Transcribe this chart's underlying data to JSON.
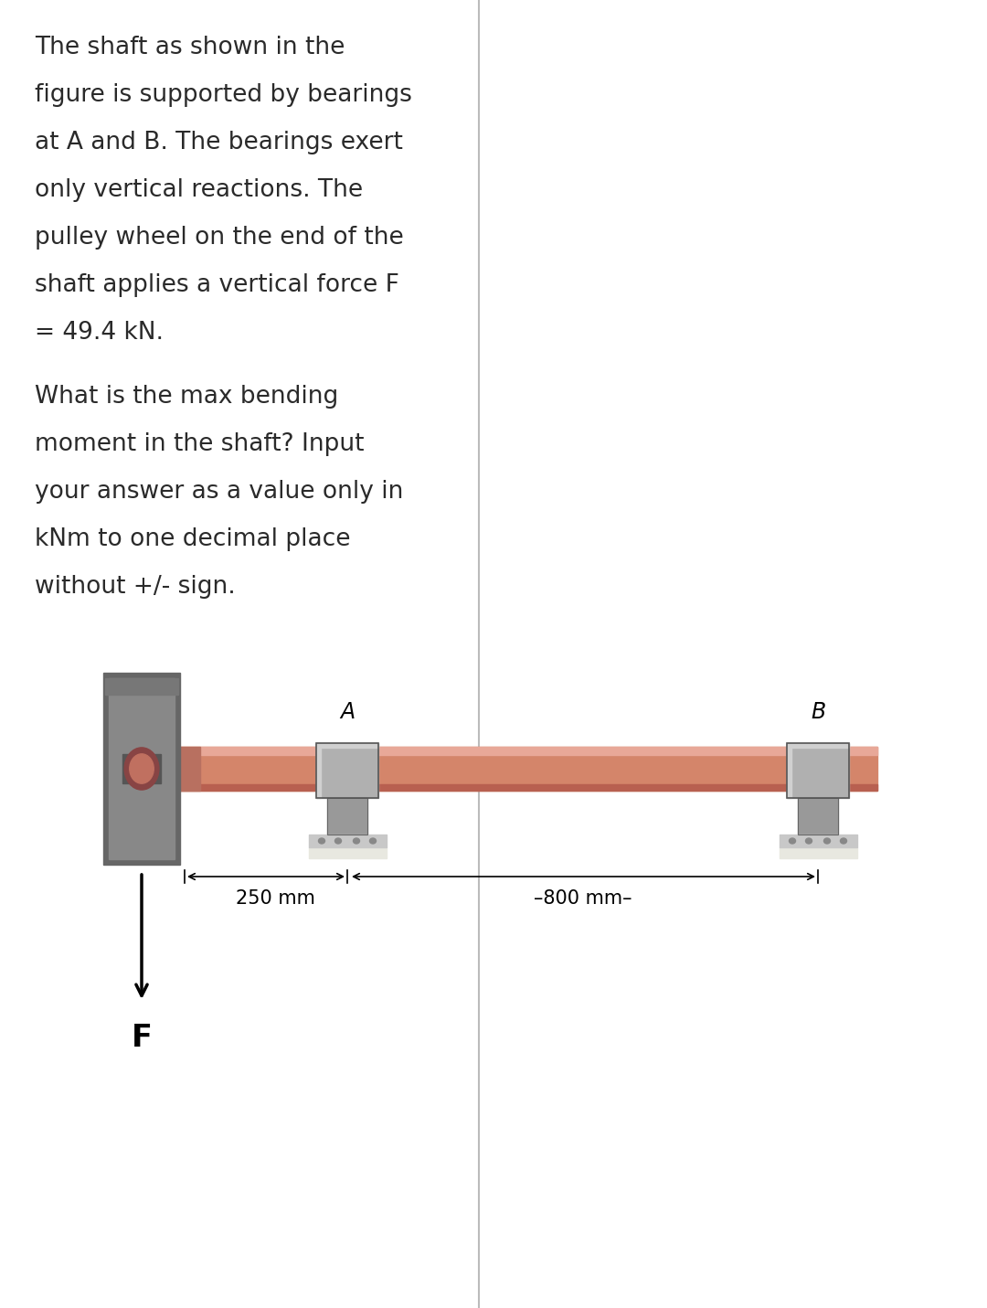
{
  "background_color": "#ffffff",
  "text_color": "#2a2a2a",
  "paragraph1_lines": [
    "The shaft as shown in the",
    "figure is supported by bearings",
    "at A and B. The bearings exert",
    "only vertical reactions. The",
    "pulley wheel on the end of the",
    "shaft applies a vertical force F",
    "= 49.4 kN."
  ],
  "paragraph2_lines": [
    "What is the max bending",
    "moment in the shaft? Input",
    "your answer as a value only in",
    "kNm to one decimal place",
    "without +/- sign."
  ],
  "label_A": "A",
  "label_B": "B",
  "label_F": "F",
  "dim_250": "250 mm",
  "dim_800": "–800 mm–",
  "shaft_color": "#d4856a",
  "shaft_highlight": "#e8a898",
  "shaft_shadow": "#b86050",
  "pulley_outer": "#666666",
  "pulley_mid": "#888888",
  "pulley_inner": "#999999",
  "pulley_hub_color": "#c07060",
  "pulley_hub_ring": "#884444",
  "shaft_stub_color": "#b87060",
  "bearing_block_color": "#b0b0b0",
  "bearing_block_highlight": "#d0d0d0",
  "bearing_block_shadow": "#888888",
  "bearing_base_color": "#c8c8c8",
  "bearing_base_shadow": "#e8e8e0",
  "divider_color": "#bbbbbb",
  "font_size_text": 19,
  "font_size_label": 17,
  "font_size_F": 24,
  "font_size_dim": 15
}
